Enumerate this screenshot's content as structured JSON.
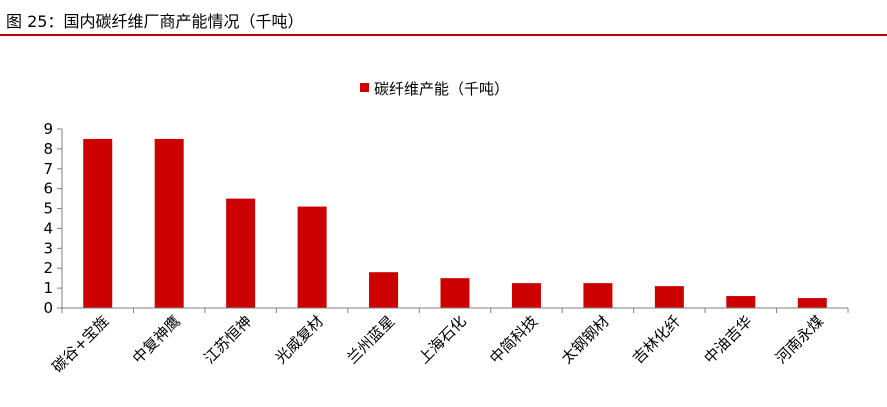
{
  "figure": {
    "title": "图 25：国内碳纤维厂商产能情况（千吨）"
  },
  "colors": {
    "bar": "#cc0000",
    "title_rule": "#c00000",
    "axis": "#808080"
  },
  "chart_data": {
    "type": "bar",
    "categories": [
      "碳谷+宝旌",
      "中复神鹰",
      "江苏恒神",
      "光威复材",
      "兰州蓝星",
      "上海石化",
      "中简科技",
      "太钢钢材",
      "吉林化纤",
      "中油吉华",
      "河南永煤"
    ],
    "series": [
      {
        "name": "碳纤维产能（千吨）",
        "values": [
          8.5,
          8.5,
          5.5,
          5.1,
          1.8,
          1.5,
          1.25,
          1.25,
          1.1,
          0.6,
          0.5
        ]
      }
    ],
    "title": "",
    "xlabel": "",
    "ylabel": "",
    "ylim": [
      0,
      9
    ],
    "yticks": [
      "0",
      "1",
      "2",
      "3",
      "4",
      "5",
      "6",
      "7",
      "8",
      "9"
    ],
    "grid": false,
    "legend_position": "top-center"
  }
}
